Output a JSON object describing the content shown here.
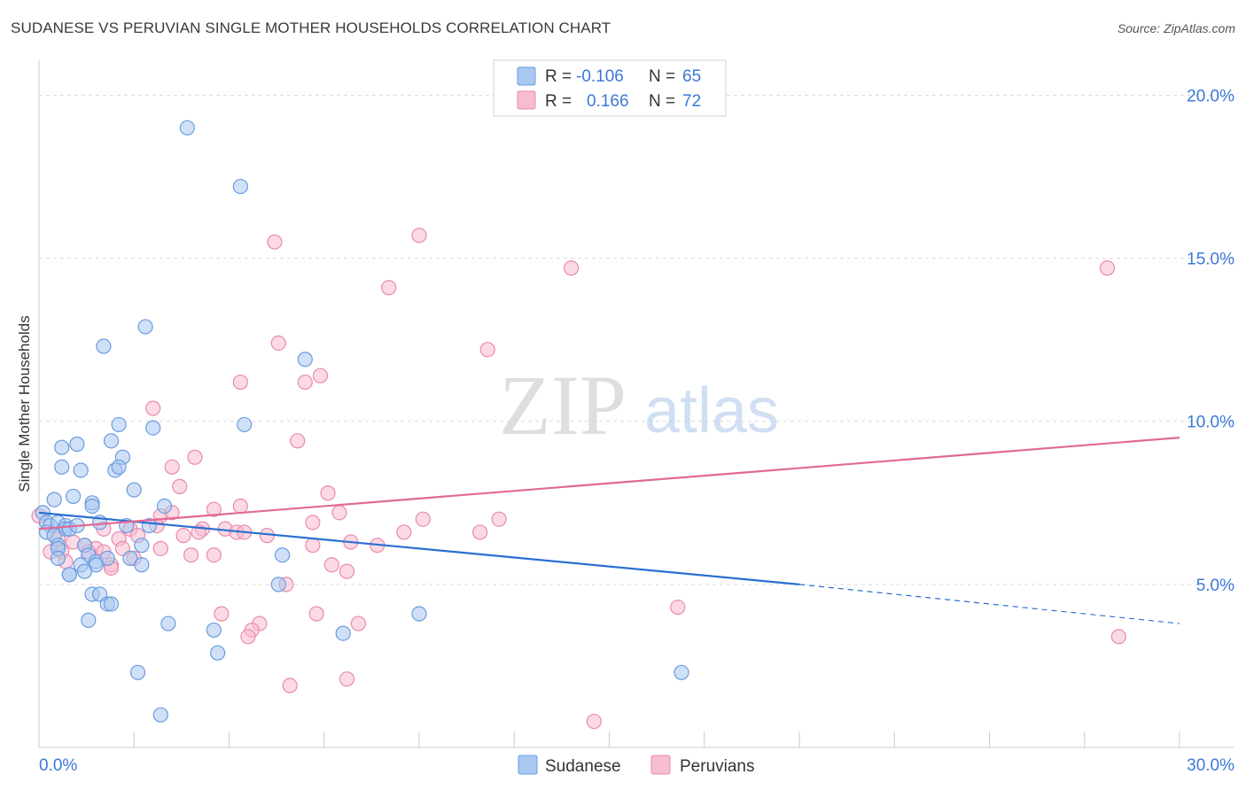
{
  "title": "SUDANESE VS PERUVIAN SINGLE MOTHER HOUSEHOLDS CORRELATION CHART",
  "source": "Source: ZipAtlas.com",
  "watermark": {
    "zip": "ZIP",
    "atlas": "atlas"
  },
  "colors": {
    "blue_fill": "#a9c8f0",
    "blue_stroke": "#6a9be0",
    "blue_line": "#2a6fd1",
    "pink_fill": "#f7bcd0",
    "pink_stroke": "#e98aab",
    "pink_line": "#e06a94",
    "tick_text": "#3b78d8",
    "grid": "#d9d9d9"
  },
  "legend": {
    "rows": [
      {
        "r_label": "R =",
        "r_value": "-0.106",
        "n_label": "N =",
        "n_value": "65"
      },
      {
        "r_label": "R =",
        "r_value": "0.166",
        "n_label": "N =",
        "n_value": "72"
      }
    ]
  },
  "chart_data": {
    "type": "scatter",
    "title": "SUDANESE VS PERUVIAN SINGLE MOTHER HOUSEHOLDS CORRELATION CHART",
    "xlabel": "",
    "ylabel": "Single Mother Households",
    "xlim": [
      0,
      30
    ],
    "ylim": [
      0,
      20.8
    ],
    "x_tick_labels": [
      {
        "value": 0,
        "label": "0.0%"
      },
      {
        "value": 30,
        "label": "30.0%"
      }
    ],
    "y_tick_labels": [
      {
        "value": 5,
        "label": "5.0%"
      },
      {
        "value": 10,
        "label": "10.0%"
      },
      {
        "value": 15,
        "label": "15.0%"
      },
      {
        "value": 20,
        "label": "20.0%"
      }
    ],
    "series": [
      {
        "name": "Sudanese",
        "r": -0.106,
        "n": 65,
        "trendline": {
          "x0": 0,
          "y0": 7.2,
          "x1": 20,
          "y1": 5.0,
          "dashed_to_x": 30,
          "dashed_to_y": 3.8
        },
        "points": [
          [
            3.9,
            19.0
          ],
          [
            5.3,
            17.2
          ],
          [
            2.8,
            12.9
          ],
          [
            1.7,
            12.3
          ],
          [
            7.0,
            11.9
          ],
          [
            2.1,
            9.9
          ],
          [
            3.0,
            9.8
          ],
          [
            5.4,
            9.9
          ],
          [
            0.6,
            9.2
          ],
          [
            1.0,
            9.3
          ],
          [
            1.9,
            9.4
          ],
          [
            2.2,
            8.9
          ],
          [
            0.6,
            8.6
          ],
          [
            1.1,
            8.5
          ],
          [
            2.0,
            8.5
          ],
          [
            2.1,
            8.6
          ],
          [
            2.5,
            7.9
          ],
          [
            0.4,
            7.6
          ],
          [
            0.9,
            7.7
          ],
          [
            1.4,
            7.5
          ],
          [
            1.4,
            7.4
          ],
          [
            3.3,
            7.4
          ],
          [
            0.1,
            7.2
          ],
          [
            0.2,
            6.9
          ],
          [
            0.3,
            6.8
          ],
          [
            0.5,
            6.9
          ],
          [
            0.7,
            6.8
          ],
          [
            0.2,
            6.6
          ],
          [
            0.4,
            6.5
          ],
          [
            0.7,
            6.7
          ],
          [
            1.6,
            6.9
          ],
          [
            2.3,
            6.8
          ],
          [
            2.9,
            6.8
          ],
          [
            0.5,
            6.2
          ],
          [
            0.5,
            6.1
          ],
          [
            1.2,
            6.2
          ],
          [
            1.3,
            5.9
          ],
          [
            0.5,
            5.8
          ],
          [
            1.5,
            5.7
          ],
          [
            1.8,
            5.8
          ],
          [
            2.4,
            5.8
          ],
          [
            1.1,
            5.6
          ],
          [
            1.5,
            5.6
          ],
          [
            2.7,
            5.6
          ],
          [
            2.7,
            6.2
          ],
          [
            6.4,
            5.9
          ],
          [
            0.8,
            5.3
          ],
          [
            1.2,
            5.4
          ],
          [
            0.8,
            5.3
          ],
          [
            6.3,
            5.0
          ],
          [
            1.4,
            4.7
          ],
          [
            1.6,
            4.7
          ],
          [
            1.8,
            4.4
          ],
          [
            1.9,
            4.4
          ],
          [
            1.3,
            3.9
          ],
          [
            3.4,
            3.8
          ],
          [
            4.6,
            3.6
          ],
          [
            8.0,
            3.5
          ],
          [
            10.0,
            4.1
          ],
          [
            4.7,
            2.9
          ],
          [
            2.6,
            2.3
          ],
          [
            16.9,
            2.3
          ],
          [
            3.2,
            1.0
          ],
          [
            0.8,
            6.7
          ],
          [
            1.0,
            6.8
          ]
        ]
      },
      {
        "name": "Peruvians",
        "r": 0.166,
        "n": 72,
        "trendline": {
          "x0": 0,
          "y0": 6.7,
          "x1": 30,
          "y1": 9.5
        },
        "points": [
          [
            10.0,
            15.7
          ],
          [
            6.2,
            15.5
          ],
          [
            14.0,
            14.7
          ],
          [
            28.1,
            14.7
          ],
          [
            9.2,
            14.1
          ],
          [
            6.3,
            12.4
          ],
          [
            11.8,
            12.2
          ],
          [
            7.4,
            11.4
          ],
          [
            5.3,
            11.2
          ],
          [
            7.0,
            11.2
          ],
          [
            3.0,
            10.4
          ],
          [
            6.8,
            9.4
          ],
          [
            4.1,
            8.9
          ],
          [
            3.5,
            8.6
          ],
          [
            3.7,
            8.0
          ],
          [
            7.6,
            7.8
          ],
          [
            5.3,
            7.4
          ],
          [
            4.6,
            7.3
          ],
          [
            7.9,
            7.2
          ],
          [
            3.2,
            7.1
          ],
          [
            3.5,
            7.2
          ],
          [
            10.1,
            7.0
          ],
          [
            12.1,
            7.0
          ],
          [
            7.2,
            6.9
          ],
          [
            0.0,
            7.1
          ],
          [
            1.7,
            6.7
          ],
          [
            2.4,
            6.7
          ],
          [
            3.1,
            6.8
          ],
          [
            4.3,
            6.7
          ],
          [
            4.2,
            6.6
          ],
          [
            4.9,
            6.7
          ],
          [
            5.2,
            6.6
          ],
          [
            5.4,
            6.6
          ],
          [
            6.0,
            6.5
          ],
          [
            9.6,
            6.6
          ],
          [
            11.6,
            6.6
          ],
          [
            3.8,
            6.5
          ],
          [
            2.1,
            6.4
          ],
          [
            2.6,
            6.5
          ],
          [
            8.2,
            6.3
          ],
          [
            8.9,
            6.2
          ],
          [
            7.2,
            6.2
          ],
          [
            0.5,
            6.4
          ],
          [
            0.9,
            6.3
          ],
          [
            1.2,
            6.2
          ],
          [
            1.5,
            6.1
          ],
          [
            2.2,
            6.1
          ],
          [
            3.2,
            6.1
          ],
          [
            0.3,
            6.0
          ],
          [
            0.6,
            6.0
          ],
          [
            1.3,
            6.0
          ],
          [
            1.7,
            6.0
          ],
          [
            4.0,
            5.9
          ],
          [
            4.6,
            5.9
          ],
          [
            0.7,
            5.7
          ],
          [
            2.5,
            5.8
          ],
          [
            1.9,
            5.6
          ],
          [
            1.9,
            5.5
          ],
          [
            7.7,
            5.6
          ],
          [
            8.1,
            5.4
          ],
          [
            6.5,
            5.0
          ],
          [
            16.8,
            4.3
          ],
          [
            4.8,
            4.1
          ],
          [
            7.3,
            4.1
          ],
          [
            5.8,
            3.8
          ],
          [
            8.4,
            3.8
          ],
          [
            5.6,
            3.6
          ],
          [
            5.5,
            3.4
          ],
          [
            28.4,
            3.4
          ],
          [
            6.6,
            1.9
          ],
          [
            8.1,
            2.1
          ],
          [
            14.6,
            0.8
          ]
        ]
      }
    ]
  }
}
